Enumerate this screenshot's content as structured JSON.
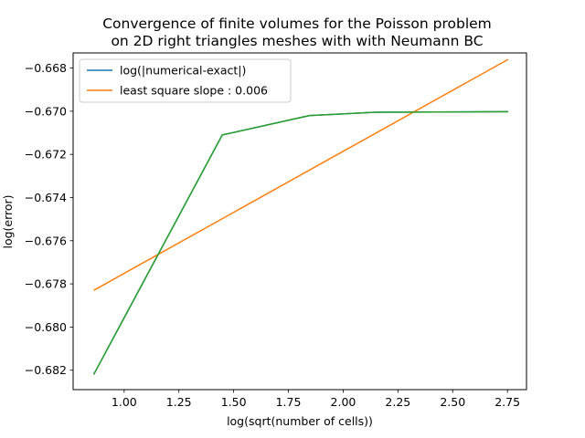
{
  "chart_data": {
    "type": "line",
    "title": "Convergence of finite volumes  for the Poisson problem\n  on 2D right triangles meshes with with Neumann BC",
    "title_lines": [
      "Convergence of finite volumes  for the Poisson problem",
      "on 2D right triangles meshes with with Neumann BC"
    ],
    "xlabel": "log(sqrt(number of cells))",
    "ylabel": "log(error)",
    "xlim": [
      0.767,
      2.837
    ],
    "ylim": [
      -0.6829,
      -0.6673
    ],
    "xticks": [
      1.0,
      1.25,
      1.5,
      1.75,
      2.0,
      2.25,
      2.5,
      2.75
    ],
    "xtick_labels": [
      "1.00",
      "1.25",
      "1.50",
      "1.75",
      "2.00",
      "2.25",
      "2.50",
      "2.75"
    ],
    "yticks": [
      -0.682,
      -0.68,
      -0.678,
      -0.676,
      -0.674,
      -0.672,
      -0.67,
      -0.668
    ],
    "ytick_labels": [
      "−0.682",
      "−0.680",
      "−0.678",
      "−0.676",
      "−0.674",
      "−0.672",
      "−0.670",
      "−0.668"
    ],
    "grid": false,
    "legend_position": "top-left",
    "series": [
      {
        "name": "log(|numerical-exact|)",
        "color": "#1f77b4",
        "x": [
          0.861,
          1.448,
          1.846,
          2.148,
          2.753
        ],
        "y": [
          -0.6822,
          -0.6711,
          -0.6702,
          -0.67005,
          -0.67002
        ]
      },
      {
        "name": "least square slope : 0.006",
        "color": "#ff7f0e",
        "x": [
          0.861,
          2.753
        ],
        "y": [
          -0.6783,
          -0.6676
        ]
      },
      {
        "name": "",
        "color": "#2ca02c",
        "x": [
          0.861,
          1.448,
          1.846,
          2.148,
          2.753
        ],
        "y": [
          -0.6822,
          -0.6711,
          -0.6702,
          -0.67005,
          -0.67002
        ]
      }
    ]
  }
}
